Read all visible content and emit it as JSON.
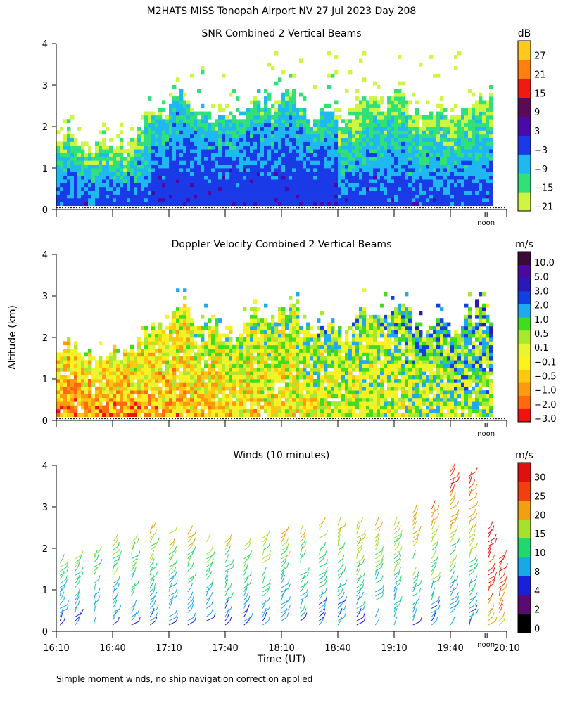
{
  "title": "M2HATS MISS Tonopah Airport NV  27 Jul 2023 Day 208",
  "ylabel": "Altitude (km)",
  "xlabel": "Time (UT)",
  "noon_label": "noon",
  "footnote": "Simple moment winds, no ship navigation correction applied",
  "time_range_min": [
    970,
    1210
  ],
  "x_ticks": [
    "16:10",
    "16:40",
    "17:10",
    "17:40",
    "18:10",
    "18:40",
    "19:10",
    "19:40",
    "20:10"
  ],
  "x_tick_minutes": [
    970,
    1000,
    1030,
    1060,
    1090,
    1120,
    1150,
    1180,
    1210
  ],
  "noon_minute": 1199,
  "chart_data": [
    {
      "type": "heatmap",
      "title": "SNR Combined 2 Vertical Beams",
      "units": "dB",
      "ylim": [
        0,
        4
      ],
      "y_ticks": [
        "0",
        "1",
        "2",
        "3",
        "4"
      ],
      "colorbar_labels": [
        "27",
        "21",
        "15",
        "9",
        "3",
        "−3",
        "−9",
        "−15",
        "−21"
      ],
      "colors": [
        "#cdf542",
        "#32e07a",
        "#1fb8f0",
        "#1a3ae8",
        "#4a0aa8",
        "#5a0a5a",
        "#f01a10",
        "#ff7f10",
        "#ffc820"
      ],
      "cloud_top_km_by_hour": {
        "16:10": 1.5,
        "17:10": 2.2,
        "18:10": 2.3,
        "19:10": 2.2,
        "20:00": 2.2
      }
    },
    {
      "type": "heatmap",
      "title": "Doppler Velocity Combined 2 Vertical Beams",
      "units": "m/s",
      "ylim": [
        0,
        4
      ],
      "y_ticks": [
        "0",
        "1",
        "2",
        "3",
        "4"
      ],
      "colorbar_labels": [
        "10.0",
        "5.0",
        "3.0",
        "2.0",
        "1.0",
        "0.5",
        "0.1",
        "−0.1",
        "−0.5",
        "−1.0",
        "−2.0",
        "−3.0"
      ],
      "colors": [
        "#f51010",
        "#ff6a10",
        "#ff9a10",
        "#ffc810",
        "#fff020",
        "#e8f530",
        "#a8e830",
        "#40dc20",
        "#20a8f0",
        "#1040e0",
        "#2a18b8",
        "#4a0aa0",
        "#3a0a3a"
      ]
    },
    {
      "type": "wind_barbs",
      "title": "Winds (10 minutes)",
      "units": "m/s",
      "ylim": [
        0,
        4
      ],
      "y_ticks": [
        "0",
        "1",
        "2",
        "3",
        "4"
      ],
      "colorbar_labels": [
        "30",
        "25",
        "20",
        "15",
        "10",
        "8",
        "4",
        "2",
        "0"
      ],
      "colors": [
        "#000000",
        "#5a0a70",
        "#1a20d8",
        "#18a8e8",
        "#20d870",
        "#a8e030",
        "#f0a010",
        "#f04010",
        "#e01010"
      ],
      "profile_times_min": [
        972,
        980,
        990,
        1000,
        1010,
        1020,
        1030,
        1040,
        1050,
        1060,
        1070,
        1080,
        1090,
        1100,
        1110,
        1120,
        1130,
        1140,
        1150,
        1160,
        1170,
        1180,
        1190,
        1200,
        1206
      ],
      "profile_top_km": [
        1.7,
        1.8,
        2.0,
        2.2,
        2.3,
        2.6,
        2.4,
        2.4,
        2.2,
        2.2,
        2.1,
        2.3,
        2.4,
        2.4,
        2.6,
        2.6,
        2.6,
        2.6,
        2.6,
        2.9,
        3.0,
        4.0,
        3.8,
        2.5,
        1.8
      ]
    }
  ]
}
